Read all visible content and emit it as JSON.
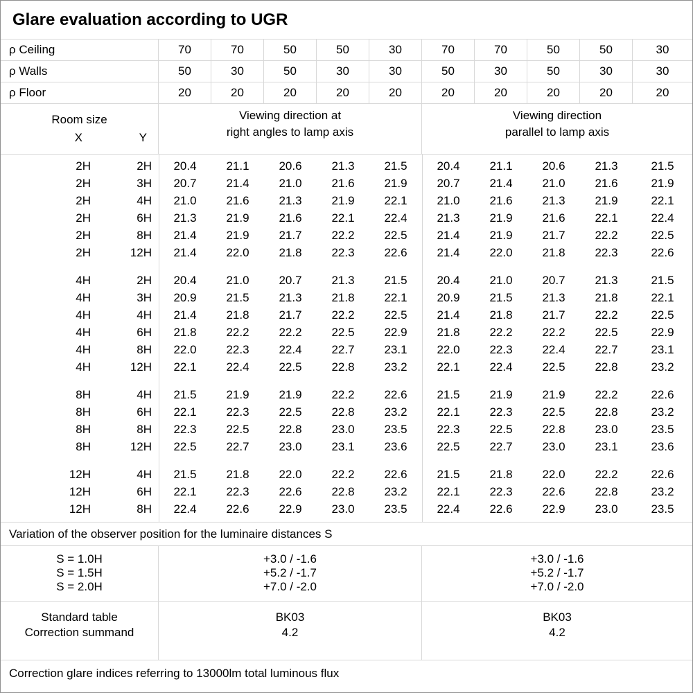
{
  "title": "Glare evaluation according to UGR",
  "colors": {
    "background": "#ffffff",
    "text": "#000000",
    "grid_line": "#d8d8d8",
    "outer_border": "#909090"
  },
  "reflectance_rows": [
    {
      "label": "ρ Ceiling",
      "values": [
        "70",
        "70",
        "50",
        "50",
        "30",
        "70",
        "70",
        "50",
        "50",
        "30"
      ]
    },
    {
      "label": "ρ Walls",
      "values": [
        "50",
        "30",
        "50",
        "30",
        "30",
        "50",
        "30",
        "50",
        "30",
        "30"
      ]
    },
    {
      "label": "ρ Floor",
      "values": [
        "20",
        "20",
        "20",
        "20",
        "20",
        "20",
        "20",
        "20",
        "20",
        "20"
      ]
    }
  ],
  "room_header": {
    "room_size": "Room size",
    "x": "X",
    "y": "Y",
    "right_angles_title": [
      "Viewing direction at",
      "right angles to lamp axis"
    ],
    "parallel_title": [
      "Viewing direction",
      "parallel to lamp axis"
    ]
  },
  "ugr_table": {
    "groups": [
      {
        "rows": [
          {
            "x": "2H",
            "y": "2H",
            "right_angles": [
              "20.4",
              "21.1",
              "20.6",
              "21.3",
              "21.5"
            ],
            "parallel": [
              "20.4",
              "21.1",
              "20.6",
              "21.3",
              "21.5"
            ]
          },
          {
            "x": "2H",
            "y": "3H",
            "right_angles": [
              "20.7",
              "21.4",
              "21.0",
              "21.6",
              "21.9"
            ],
            "parallel": [
              "20.7",
              "21.4",
              "21.0",
              "21.6",
              "21.9"
            ]
          },
          {
            "x": "2H",
            "y": "4H",
            "right_angles": [
              "21.0",
              "21.6",
              "21.3",
              "21.9",
              "22.1"
            ],
            "parallel": [
              "21.0",
              "21.6",
              "21.3",
              "21.9",
              "22.1"
            ]
          },
          {
            "x": "2H",
            "y": "6H",
            "right_angles": [
              "21.3",
              "21.9",
              "21.6",
              "22.1",
              "22.4"
            ],
            "parallel": [
              "21.3",
              "21.9",
              "21.6",
              "22.1",
              "22.4"
            ]
          },
          {
            "x": "2H",
            "y": "8H",
            "right_angles": [
              "21.4",
              "21.9",
              "21.7",
              "22.2",
              "22.5"
            ],
            "parallel": [
              "21.4",
              "21.9",
              "21.7",
              "22.2",
              "22.5"
            ]
          },
          {
            "x": "2H",
            "y": "12H",
            "right_angles": [
              "21.4",
              "22.0",
              "21.8",
              "22.3",
              "22.6"
            ],
            "parallel": [
              "21.4",
              "22.0",
              "21.8",
              "22.3",
              "22.6"
            ]
          }
        ]
      },
      {
        "rows": [
          {
            "x": "4H",
            "y": "2H",
            "right_angles": [
              "20.4",
              "21.0",
              "20.7",
              "21.3",
              "21.5"
            ],
            "parallel": [
              "20.4",
              "21.0",
              "20.7",
              "21.3",
              "21.5"
            ]
          },
          {
            "x": "4H",
            "y": "3H",
            "right_angles": [
              "20.9",
              "21.5",
              "21.3",
              "21.8",
              "22.1"
            ],
            "parallel": [
              "20.9",
              "21.5",
              "21.3",
              "21.8",
              "22.1"
            ]
          },
          {
            "x": "4H",
            "y": "4H",
            "right_angles": [
              "21.4",
              "21.8",
              "21.7",
              "22.2",
              "22.5"
            ],
            "parallel": [
              "21.4",
              "21.8",
              "21.7",
              "22.2",
              "22.5"
            ]
          },
          {
            "x": "4H",
            "y": "6H",
            "right_angles": [
              "21.8",
              "22.2",
              "22.2",
              "22.5",
              "22.9"
            ],
            "parallel": [
              "21.8",
              "22.2",
              "22.2",
              "22.5",
              "22.9"
            ]
          },
          {
            "x": "4H",
            "y": "8H",
            "right_angles": [
              "22.0",
              "22.3",
              "22.4",
              "22.7",
              "23.1"
            ],
            "parallel": [
              "22.0",
              "22.3",
              "22.4",
              "22.7",
              "23.1"
            ]
          },
          {
            "x": "4H",
            "y": "12H",
            "right_angles": [
              "22.1",
              "22.4",
              "22.5",
              "22.8",
              "23.2"
            ],
            "parallel": [
              "22.1",
              "22.4",
              "22.5",
              "22.8",
              "23.2"
            ]
          }
        ]
      },
      {
        "rows": [
          {
            "x": "8H",
            "y": "4H",
            "right_angles": [
              "21.5",
              "21.9",
              "21.9",
              "22.2",
              "22.6"
            ],
            "parallel": [
              "21.5",
              "21.9",
              "21.9",
              "22.2",
              "22.6"
            ]
          },
          {
            "x": "8H",
            "y": "6H",
            "right_angles": [
              "22.1",
              "22.3",
              "22.5",
              "22.8",
              "23.2"
            ],
            "parallel": [
              "22.1",
              "22.3",
              "22.5",
              "22.8",
              "23.2"
            ]
          },
          {
            "x": "8H",
            "y": "8H",
            "right_angles": [
              "22.3",
              "22.5",
              "22.8",
              "23.0",
              "23.5"
            ],
            "parallel": [
              "22.3",
              "22.5",
              "22.8",
              "23.0",
              "23.5"
            ]
          },
          {
            "x": "8H",
            "y": "12H",
            "right_angles": [
              "22.5",
              "22.7",
              "23.0",
              "23.1",
              "23.6"
            ],
            "parallel": [
              "22.5",
              "22.7",
              "23.0",
              "23.1",
              "23.6"
            ]
          }
        ]
      },
      {
        "rows": [
          {
            "x": "12H",
            "y": "4H",
            "right_angles": [
              "21.5",
              "21.8",
              "22.0",
              "22.2",
              "22.6"
            ],
            "parallel": [
              "21.5",
              "21.8",
              "22.0",
              "22.2",
              "22.6"
            ]
          },
          {
            "x": "12H",
            "y": "6H",
            "right_angles": [
              "22.1",
              "22.3",
              "22.6",
              "22.8",
              "23.2"
            ],
            "parallel": [
              "22.1",
              "22.3",
              "22.6",
              "22.8",
              "23.2"
            ]
          },
          {
            "x": "12H",
            "y": "8H",
            "right_angles": [
              "22.4",
              "22.6",
              "22.9",
              "23.0",
              "23.5"
            ],
            "parallel": [
              "22.4",
              "22.6",
              "22.9",
              "23.0",
              "23.5"
            ]
          }
        ]
      }
    ]
  },
  "observer_variation": {
    "caption": "Variation of the observer position for the luminaire distances S",
    "rows": [
      {
        "label": "S = 1.0H",
        "right_angles": "+3.0 / -1.6",
        "parallel": "+3.0 / -1.6"
      },
      {
        "label": "S = 1.5H",
        "right_angles": "+5.2 / -1.7",
        "parallel": "+5.2 / -1.7"
      },
      {
        "label": "S = 2.0H",
        "right_angles": "+7.0 / -2.0",
        "parallel": "+7.0 / -2.0"
      }
    ]
  },
  "standard_block": {
    "rows": [
      {
        "label": "Standard table",
        "right_angles": "BK03",
        "parallel": "BK03"
      },
      {
        "label": "Correction summand",
        "right_angles": "4.2",
        "parallel": "4.2"
      }
    ]
  },
  "footer": "Correction glare indices referring to 13000lm total luminous flux"
}
